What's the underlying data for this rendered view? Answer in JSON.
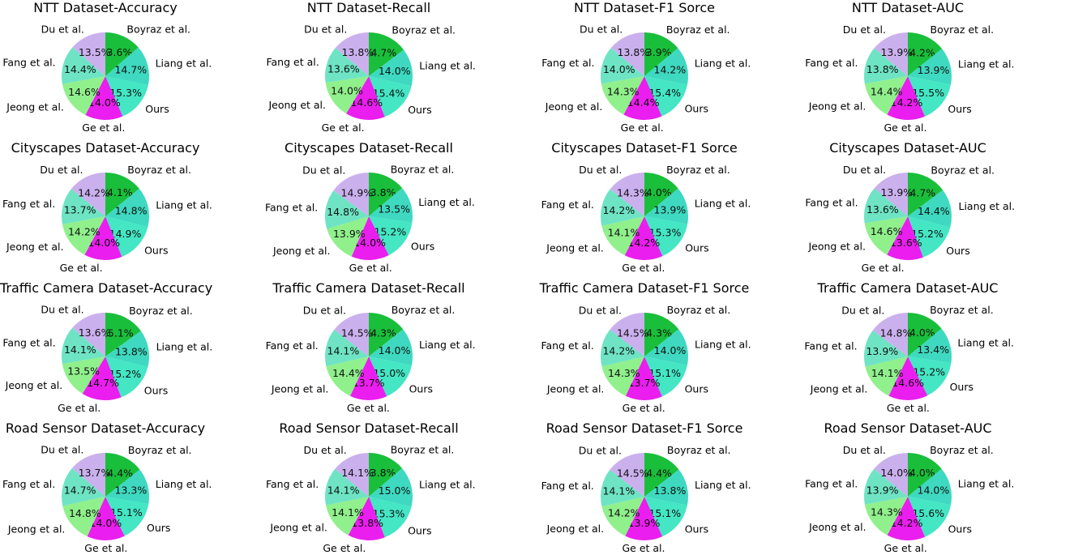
{
  "chart_data": {
    "type": "pie",
    "labels": [
      "Boyraz et al.",
      "Liang et al.",
      "Ours",
      "Ge et al.",
      "Jeong et al.",
      "Fang et al.",
      "Du et al."
    ],
    "colors": [
      "#19bf3a",
      "#3ed9c0",
      "#44e6c4",
      "#ea1eee",
      "#90f08c",
      "#6ee4c4",
      "#cbb0ee"
    ],
    "panels": [
      {
        "title": "NTT Dataset-Accuracy",
        "values": [
          13.6,
          14.7,
          15.3,
          14.0,
          14.6,
          14.4,
          13.5
        ]
      },
      {
        "title": "NTT Dataset-Recall",
        "values": [
          14.7,
          14.0,
          15.4,
          14.6,
          14.0,
          13.6,
          13.8
        ]
      },
      {
        "title": "NTT Dataset-F1 Sorce",
        "values": [
          13.9,
          14.2,
          15.4,
          14.4,
          14.3,
          14.0,
          13.8
        ]
      },
      {
        "title": "NTT Dataset-AUC",
        "values": [
          14.2,
          13.9,
          15.5,
          14.2,
          14.4,
          13.8,
          13.9
        ]
      },
      {
        "title": "Cityscapes Dataset-Accuracy",
        "values": [
          14.1,
          14.8,
          14.9,
          14.0,
          14.2,
          13.7,
          14.2
        ]
      },
      {
        "title": "Cityscapes Dataset-Recall",
        "values": [
          13.8,
          13.5,
          15.2,
          14.0,
          13.9,
          14.8,
          14.9
        ]
      },
      {
        "title": "Cityscapes Dataset-F1 Sorce",
        "values": [
          14.0,
          13.9,
          15.3,
          14.2,
          14.1,
          14.2,
          14.3
        ]
      },
      {
        "title": "Cityscapes Dataset-AUC",
        "values": [
          14.7,
          14.4,
          15.2,
          13.6,
          14.6,
          13.6,
          13.9
        ]
      },
      {
        "title": "Traffic Camera Dataset-Accuracy",
        "values": [
          15.1,
          13.8,
          15.2,
          14.7,
          13.5,
          14.1,
          13.6
        ]
      },
      {
        "title": "Traffic Camera Dataset-Recall",
        "values": [
          14.3,
          14.0,
          15.0,
          13.7,
          14.4,
          14.1,
          14.5
        ]
      },
      {
        "title": "Traffic Camera Dataset-F1 Sorce",
        "values": [
          14.3,
          14.0,
          15.1,
          13.7,
          14.3,
          14.2,
          14.5
        ]
      },
      {
        "title": "Traffic Camera Dataset-AUC",
        "values": [
          14.0,
          13.4,
          15.2,
          14.6,
          14.1,
          13.9,
          14.8
        ]
      },
      {
        "title": "Road Sensor Dataset-Accuracy",
        "values": [
          14.4,
          13.3,
          15.1,
          14.0,
          14.8,
          14.7,
          13.7
        ]
      },
      {
        "title": "Road Sensor Dataset-Recall",
        "values": [
          13.8,
          15.0,
          15.3,
          13.8,
          14.1,
          14.1,
          14.1
        ]
      },
      {
        "title": "Road Sensor Dataset-F1 Sorce",
        "values": [
          14.4,
          13.8,
          15.1,
          13.9,
          14.2,
          14.1,
          14.5
        ]
      },
      {
        "title": "Road Sensor Dataset-AUC",
        "values": [
          14.0,
          14.0,
          15.6,
          14.2,
          14.3,
          13.9,
          14.0
        ]
      }
    ]
  }
}
